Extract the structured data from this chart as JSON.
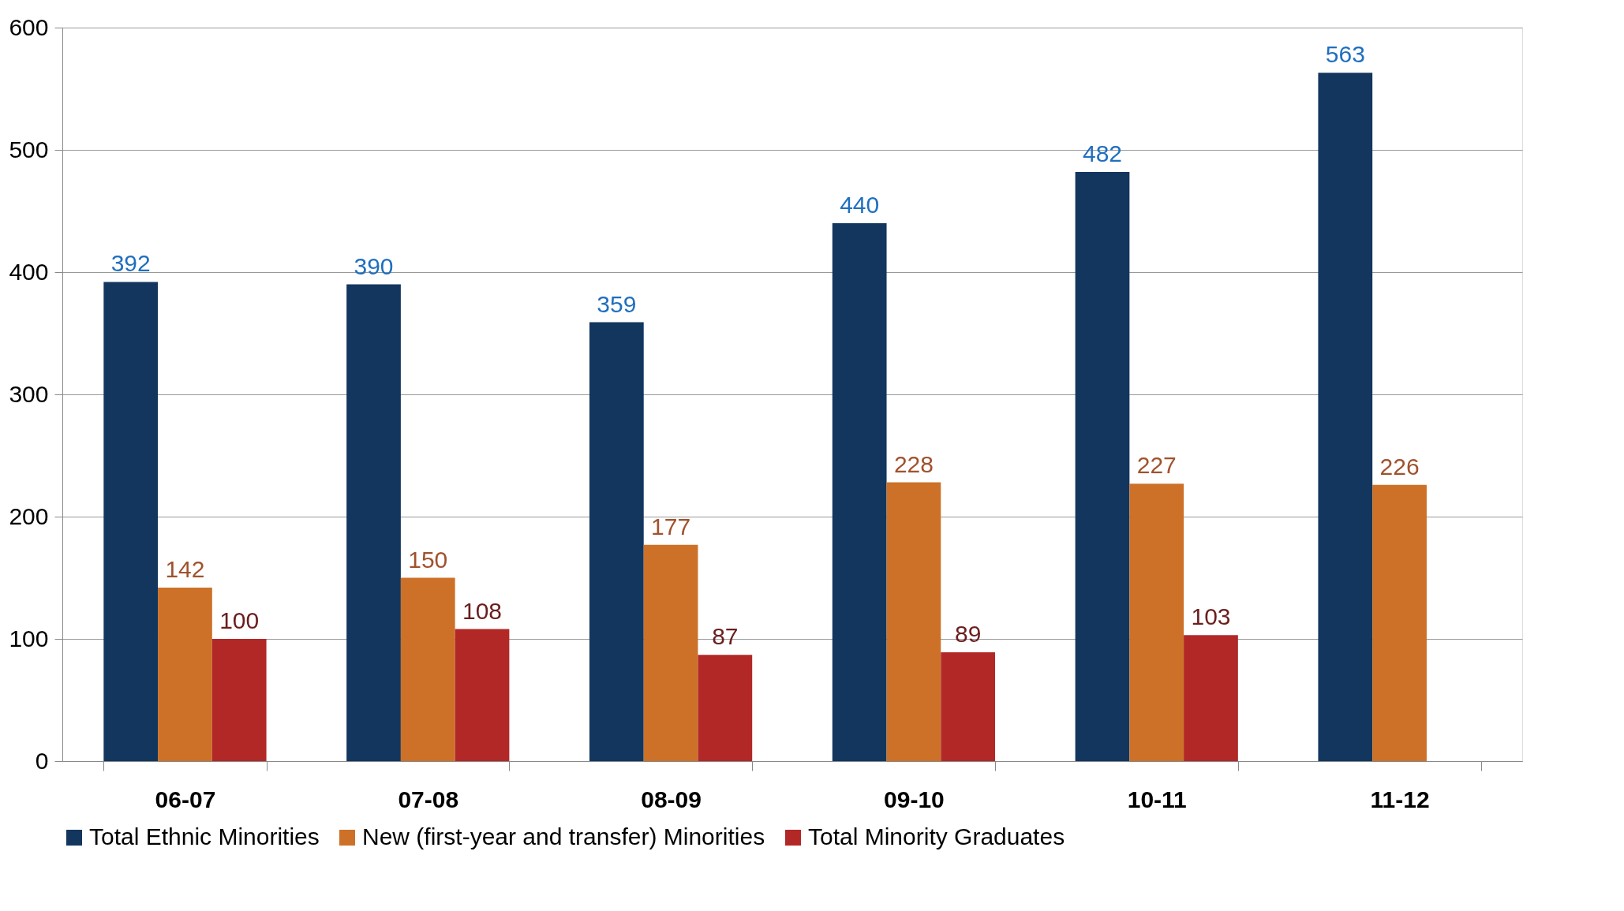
{
  "chart_data": {
    "type": "bar",
    "categories": [
      "06-07",
      "07-08",
      "08-09",
      "09-10",
      "10-11",
      "11-12"
    ],
    "series": [
      {
        "name": "Total Ethnic Minorities",
        "color": "#12365e",
        "values": [
          392,
          390,
          359,
          440,
          482,
          563
        ]
      },
      {
        "name": "New (first-year and transfer) Minorities",
        "color": "#cd7128",
        "values": [
          142,
          150,
          177,
          228,
          227,
          226
        ]
      },
      {
        "name": "Total Minority Graduates",
        "color": "#b22827",
        "values": [
          100,
          108,
          87,
          89,
          103,
          null
        ]
      }
    ],
    "ylim": [
      0,
      600
    ],
    "yticks": [
      0,
      100,
      200,
      300,
      400,
      500,
      600
    ],
    "grid": "y",
    "legend": "bottom",
    "data_labels": true
  }
}
